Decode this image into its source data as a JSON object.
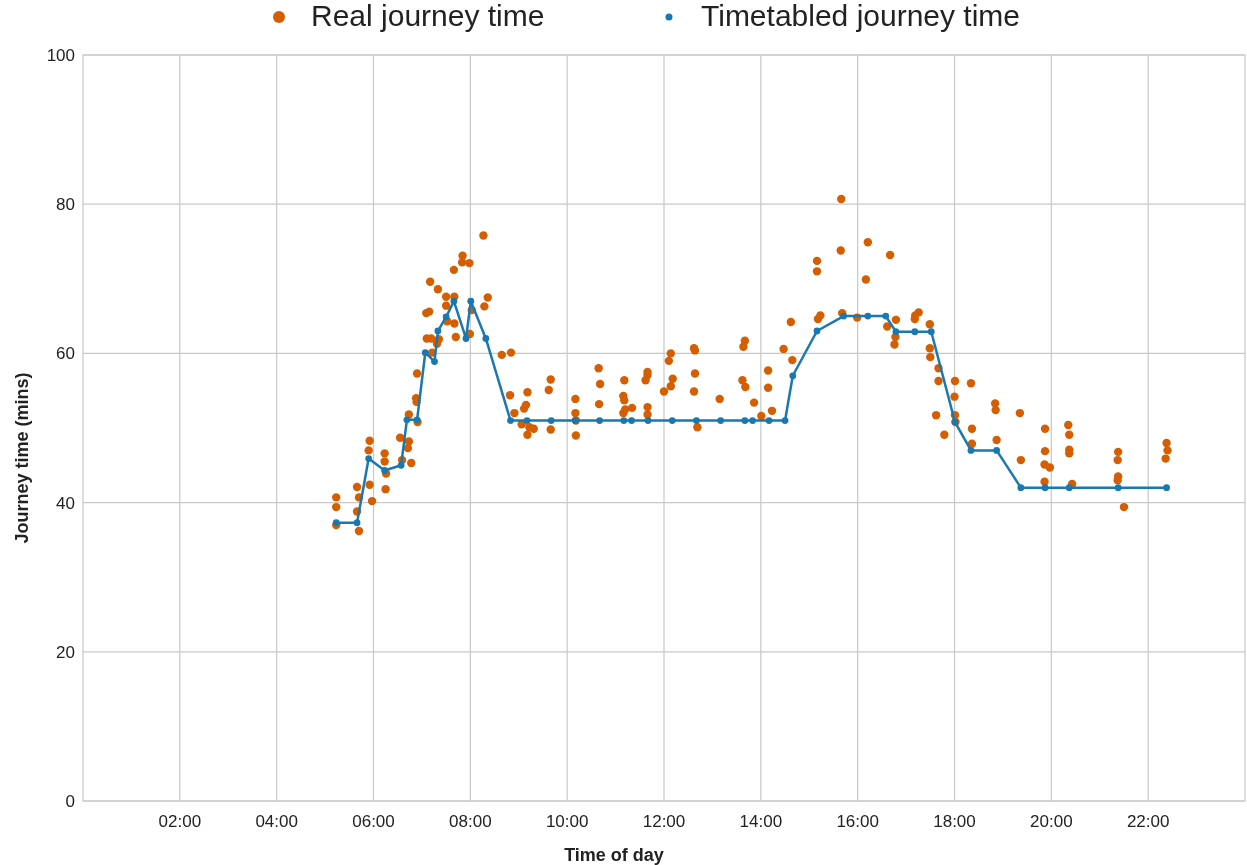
{
  "chart_data": {
    "type": "scatter",
    "xlabel": "Time of day",
    "ylabel": "Journey time (mins)",
    "xlim": [
      0,
      24
    ],
    "ylim": [
      0,
      100
    ],
    "xticks": [
      {
        "value": 2,
        "label": "02:00"
      },
      {
        "value": 4,
        "label": "04:00"
      },
      {
        "value": 6,
        "label": "06:00"
      },
      {
        "value": 8,
        "label": "08:00"
      },
      {
        "value": 10,
        "label": "10:00"
      },
      {
        "value": 12,
        "label": "12:00"
      },
      {
        "value": 14,
        "label": "14:00"
      },
      {
        "value": 16,
        "label": "16:00"
      },
      {
        "value": 18,
        "label": "18:00"
      },
      {
        "value": 20,
        "label": "20:00"
      },
      {
        "value": 22,
        "label": "22:00"
      }
    ],
    "yticks": [
      0,
      20,
      40,
      60,
      80,
      100
    ],
    "grid": true,
    "legend": "top",
    "marker": "circle",
    "series": [
      {
        "name": "Real journey time",
        "color": "#d55e00",
        "x": [
          5.23,
          5.23,
          5.23,
          5.66,
          5.66,
          5.7,
          5.7,
          5.92,
          5.9,
          5.92,
          5.97,
          6.23,
          6.23,
          6.26,
          6.25,
          6.55,
          6.59,
          6.73,
          6.73,
          6.71,
          6.78,
          6.91,
          6.88,
          6.89,
          6.9,
          7.09,
          7.15,
          7.17,
          7.1,
          7.19,
          7.35,
          7.31,
          7.21,
          7.33,
          7.5,
          7.5,
          7.52,
          7.67,
          7.66,
          7.67,
          7.7,
          7.84,
          7.83,
          7.98,
          8.03,
          7.99,
          8.27,
          8.36,
          8.29,
          8.65,
          8.84,
          8.82,
          8.91,
          9.18,
          9.15,
          9.11,
          9.06,
          9.18,
          9.22,
          9.31,
          9.62,
          9.66,
          9.66,
          10.17,
          10.17,
          10.18,
          10.18,
          10.65,
          10.68,
          10.66,
          11.18,
          11.16,
          11.18,
          11.2,
          11.16,
          11.34,
          11.66,
          11.66,
          11.62,
          11.66,
          11.66,
          12.14,
          12.1,
          12.18,
          12.14,
          12,
          12.62,
          12.64,
          12.64,
          12.62,
          12.69,
          13.15,
          13.67,
          13.64,
          13.62,
          13.68,
          13.86,
          14.01,
          14.15,
          14.15,
          14.23,
          14.47,
          14.65,
          14.62,
          15.16,
          15.16,
          15.18,
          15.23,
          15.66,
          15.65,
          15.68,
          15.99,
          16.21,
          16.17,
          16.67,
          16.61,
          16.79,
          16.78,
          16.76,
          17.18,
          17.19,
          17.26,
          17.49,
          17.49,
          17.5,
          17.67,
          17.67,
          17.62,
          17.79,
          18.01,
          18,
          18.01,
          18.02,
          18.34,
          18.36,
          18.36,
          18.84,
          18.85,
          18.87,
          19.35,
          19.37,
          19.87,
          19.87,
          19.86,
          19.97,
          19.86,
          20.35,
          20.37,
          20.37,
          20.37,
          20.43,
          21.38,
          21.37,
          21.38,
          21.37,
          21.5,
          22.36,
          22.4,
          22.38
        ],
        "values": [
          40.7,
          39.4,
          37,
          42.1,
          38.8,
          40.7,
          36.2,
          48.3,
          47,
          42.4,
          40.2,
          46.6,
          45.5,
          43.9,
          41.8,
          48.7,
          45.7,
          51.8,
          48.2,
          47.3,
          45.3,
          50.8,
          54,
          53.5,
          57.3,
          65.4,
          65.6,
          69.6,
          62,
          62,
          61.9,
          61.3,
          60.1,
          68.6,
          67.6,
          66.4,
          64.3,
          67.6,
          71.2,
          64,
          62.2,
          73.1,
          72.2,
          72.1,
          65.8,
          62.6,
          75.8,
          67.5,
          66.3,
          59.8,
          60.1,
          54.4,
          52,
          54.8,
          53.1,
          52.6,
          50.5,
          49.1,
          50.1,
          49.9,
          55.1,
          56.5,
          49.8,
          53.9,
          52,
          51,
          49,
          58,
          55.9,
          53.2,
          56.4,
          54.3,
          53.7,
          52.5,
          52,
          52.7,
          57.5,
          57.1,
          56.4,
          52.8,
          51.8,
          60,
          59,
          56.6,
          55.6,
          54.9,
          60.7,
          60.4,
          57.3,
          54.9,
          50.1,
          53.9,
          61.7,
          60.9,
          56.4,
          55.5,
          53.4,
          51.6,
          57.7,
          55.4,
          52.3,
          60.6,
          59.1,
          64.2,
          72.4,
          71,
          64.6,
          65.1,
          80.7,
          73.8,
          65.4,
          64.8,
          74.9,
          69.9,
          73.2,
          63.6,
          64.5,
          62.2,
          61.2,
          64.6,
          65.1,
          65.5,
          63.9,
          60.7,
          59.5,
          58,
          56.3,
          51.7,
          49.1,
          56.3,
          54.2,
          51.7,
          50.8,
          56,
          49.9,
          47.9,
          53.3,
          52.4,
          48.4,
          52,
          45.7,
          49.9,
          46.9,
          45.1,
          44.7,
          42.8,
          50.4,
          49.1,
          47.1,
          46.6,
          42.5,
          46.8,
          45.7,
          43.5,
          43,
          39.4,
          45.9,
          47,
          48
        ]
      },
      {
        "name": "Timetabled journey time",
        "type": "line",
        "color": "#1a78b0",
        "x": [
          5.23,
          5.66,
          5.9,
          6.23,
          6.57,
          6.69,
          6.9,
          7.07,
          7.26,
          7.33,
          7.5,
          7.66,
          7.91,
          8.01,
          8.32,
          8.83,
          9.17,
          9.67,
          10.17,
          10.67,
          11.17,
          11.33,
          11.67,
          12.17,
          12.67,
          13.17,
          13.67,
          13.83,
          14.17,
          14.5,
          14.66,
          15.16,
          15.71,
          16.21,
          16.58,
          16.79,
          17.18,
          17.52,
          18.01,
          18.34,
          18.87,
          19.37,
          19.87,
          20.37,
          21.38,
          22.38
        ],
        "values": [
          37.3,
          37.3,
          45.9,
          44.3,
          45,
          51.1,
          51.1,
          60.1,
          58.9,
          63,
          64.9,
          67,
          62,
          67,
          62,
          51,
          51,
          51,
          51,
          51,
          51,
          51,
          51,
          51,
          51,
          51,
          51,
          51,
          51,
          51,
          57,
          63,
          65,
          65,
          65,
          62.9,
          62.9,
          62.9,
          50.8,
          47,
          47,
          42,
          42,
          42,
          42,
          42
        ]
      }
    ]
  }
}
